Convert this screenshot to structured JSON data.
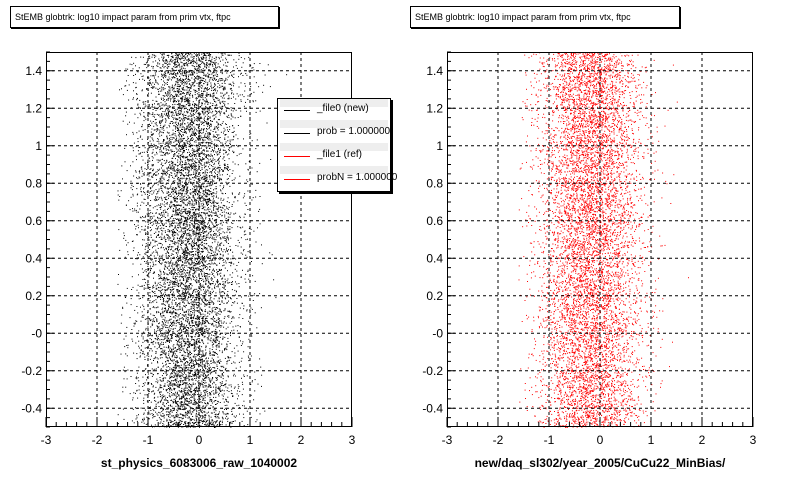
{
  "colors": {
    "file0": "#000000",
    "file1": "#ff0000"
  },
  "chart_data": [
    {
      "type": "scatter",
      "title": "StEMB globtrk: log10 impact param from prim vtx, ftpc",
      "xlabel": "st_physics_6083006_raw_1040002",
      "ylabel": "",
      "xlim": [
        -3,
        3
      ],
      "ylim": [
        -0.5,
        1.5
      ],
      "x_ticks": [
        "-3",
        "-2",
        "-1",
        "0",
        "1",
        "2",
        "3"
      ],
      "y_ticks": [
        "-0.4",
        "-0.2",
        "-0",
        "0.2",
        "0.4",
        "0.6",
        "0.8",
        "1",
        "1.2",
        "1.4"
      ],
      "grid": true,
      "series": [
        {
          "color": "#000000",
          "x_center": -0.2,
          "x_spread": 0.5,
          "x_range": [
            -1.6,
            2.0
          ],
          "n_points": 9000
        }
      ],
      "legend": {
        "placement": "top-right",
        "entries": [
          {
            "label": "_file0 (new)",
            "color": "#000000"
          },
          {
            "label": "prob = 1.000000",
            "color": "#000000"
          },
          {
            "label": "_file1 (ref)",
            "color": "#ff0000"
          },
          {
            "label": "probN = 1.000000",
            "color": "#ff0000"
          }
        ]
      }
    },
    {
      "type": "scatter",
      "title": "StEMB globtrk: log10 impact param from prim vtx, ftpc",
      "xlabel": "new/daq_sl302/year_2005/CuCu22_MinBias/",
      "ylabel": "",
      "xlim": [
        -3,
        3
      ],
      "ylim": [
        -0.5,
        1.5
      ],
      "x_ticks": [
        "-3",
        "-2",
        "-1",
        "0",
        "1",
        "2",
        "3"
      ],
      "y_ticks": [
        "-0.4",
        "-0.2",
        "-0",
        "0.2",
        "0.4",
        "0.6",
        "0.8",
        "1",
        "1.2",
        "1.4"
      ],
      "grid": true,
      "series": [
        {
          "color": "#ff0000",
          "x_center": -0.2,
          "x_spread": 0.5,
          "x_range": [
            -1.6,
            2.0
          ],
          "n_points": 8000
        }
      ]
    }
  ]
}
